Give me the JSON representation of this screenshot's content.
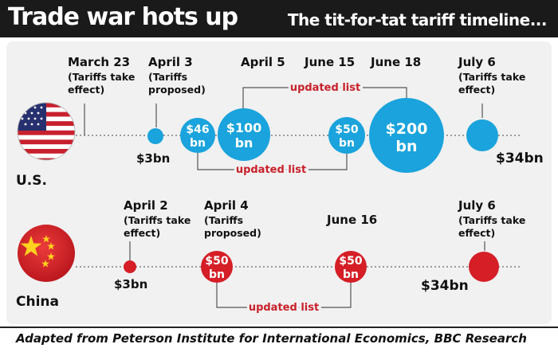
{
  "header": {
    "title": "Trade war hots up",
    "subtitle": "The tit-for-tat tariff timeline..."
  },
  "footer": {
    "source": "Adapted from Peterson Institute for International Economics, BBC Research"
  },
  "colors": {
    "us": "#1aa3dc",
    "china": "#d51e26",
    "updated": "#c8202a",
    "text": "#111111",
    "panel": "#f1f1f1",
    "header": "#1a1a1a"
  },
  "icons": {
    "us": "us-flag-icon",
    "china": "china-flag-icon"
  },
  "us": {
    "country_label": "U.S.",
    "events": [
      {
        "date": "March 23",
        "notes": [
          "(Tariffs take",
          "effect)"
        ]
      },
      {
        "date": "April 3",
        "notes": [
          "(Tariffs",
          "proposed)"
        ]
      },
      {
        "date": "April 5",
        "notes": []
      },
      {
        "date": "June 15",
        "notes": []
      },
      {
        "date": "June 18",
        "notes": []
      },
      {
        "date": "July 6",
        "notes": [
          "(Tariffs take",
          "effect)"
        ]
      }
    ],
    "amounts": [
      {
        "value_bn": 3,
        "lines": [
          "$3bn"
        ]
      },
      {
        "value_bn": 46,
        "lines": [
          "$46",
          "bn"
        ]
      },
      {
        "value_bn": 100,
        "lines": [
          "$100",
          "bn"
        ]
      },
      {
        "value_bn": 50,
        "lines": [
          "$50",
          "bn"
        ]
      },
      {
        "value_bn": 200,
        "lines": [
          "$200",
          "bn"
        ]
      },
      {
        "value_bn": 34,
        "lines": [
          "$34bn"
        ]
      }
    ],
    "updates": [
      {
        "label": "updated list",
        "from": 2,
        "to": 4
      },
      {
        "label": "updated list",
        "from": 1,
        "to": 3
      }
    ]
  },
  "china": {
    "country_label": "China",
    "events": [
      {
        "date": "April 2",
        "notes": [
          "(Tariffs take",
          "effect)"
        ]
      },
      {
        "date": "April 4",
        "notes": [
          "(Tariffs",
          "proposed)"
        ]
      },
      {
        "date": "June 16",
        "notes": []
      },
      {
        "date": "July 6",
        "notes": [
          "(Tariffs take",
          "effect)"
        ]
      }
    ],
    "amounts": [
      {
        "value_bn": 3,
        "lines": [
          "$3bn"
        ]
      },
      {
        "value_bn": 50,
        "lines": [
          "$50",
          "bn"
        ]
      },
      {
        "value_bn": 50,
        "lines": [
          "$50",
          "bn"
        ]
      },
      {
        "value_bn": 34,
        "lines": [
          "$34bn"
        ]
      }
    ],
    "updates": [
      {
        "label": "updated list",
        "from": 1,
        "to": 2
      }
    ]
  }
}
